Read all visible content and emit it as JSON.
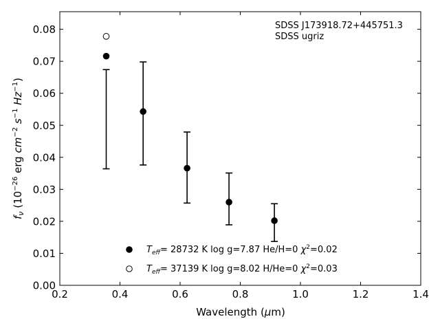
{
  "chart_data": {
    "type": "scatter",
    "title": "",
    "xlabel": "Wavelength (μm)",
    "xlabel_parts": {
      "main": "Wavelength (",
      "mu": "μ",
      "unit": "m)"
    },
    "ylabel_parts": {
      "f": "f",
      "nu": "ν",
      "text1": " (10",
      "exp1": "−26",
      "text2": " erg ",
      "cm": "cm",
      "exp2": "−2",
      "s": "s",
      "exp3": "−1",
      "hz": "Hz",
      "exp4": "−1",
      "close": ")"
    },
    "xlim": [
      0.2,
      1.4
    ],
    "ylim": [
      0.0,
      0.0855
    ],
    "x_ticks": [
      0.2,
      0.4,
      0.6,
      0.8,
      1.0,
      1.2,
      1.4
    ],
    "x_tick_labels": [
      "0.2",
      "0.4",
      "0.6",
      "0.8",
      "1.0",
      "1.2",
      "1.4"
    ],
    "y_ticks": [
      0.0,
      0.01,
      0.02,
      0.03,
      0.04,
      0.05,
      0.06,
      0.07,
      0.08
    ],
    "y_tick_labels": [
      "0.00",
      "0.01",
      "0.02",
      "0.03",
      "0.04",
      "0.05",
      "0.06",
      "0.07",
      "0.08"
    ],
    "grid": false,
    "annotation_lines": [
      "SDSS J173918.72+445751.3",
      "SDSS ugriz"
    ],
    "observed": {
      "x": [
        0.3543,
        0.477,
        0.6231,
        0.7625,
        0.9134
      ],
      "y": [
        0.0519,
        0.0537,
        0.0368,
        0.027,
        0.0196
      ],
      "yerr": [
        0.0155,
        0.0161,
        0.0111,
        0.0081,
        0.0059
      ]
    },
    "series": [
      {
        "marker": "filled-circle",
        "x": [
          0.3543,
          0.477,
          0.6231,
          0.7625,
          0.9134
        ],
        "y": [
          0.0716,
          0.0543,
          0.0366,
          0.026,
          0.0202
        ],
        "legend_parts": {
          "T": "T",
          "sub": "eff",
          "rest": "= 28732 K  log g=7.87  He/H=0  ",
          "chi": "χ",
          "sup": "2",
          "end": "=0.02"
        }
      },
      {
        "marker": "open-circle",
        "x": [
          0.3543
        ],
        "y": [
          0.0778
        ],
        "legend_parts": {
          "T": "T",
          "sub": "eff",
          "rest": "= 37139 K  log g=8.02  H/He=0  ",
          "chi": "χ",
          "sup": "2",
          "end": "=0.03"
        }
      }
    ],
    "legend_position": "lower-center",
    "colors": {
      "marker": "#000000",
      "axes": "#000000",
      "background": "#ffffff"
    }
  }
}
